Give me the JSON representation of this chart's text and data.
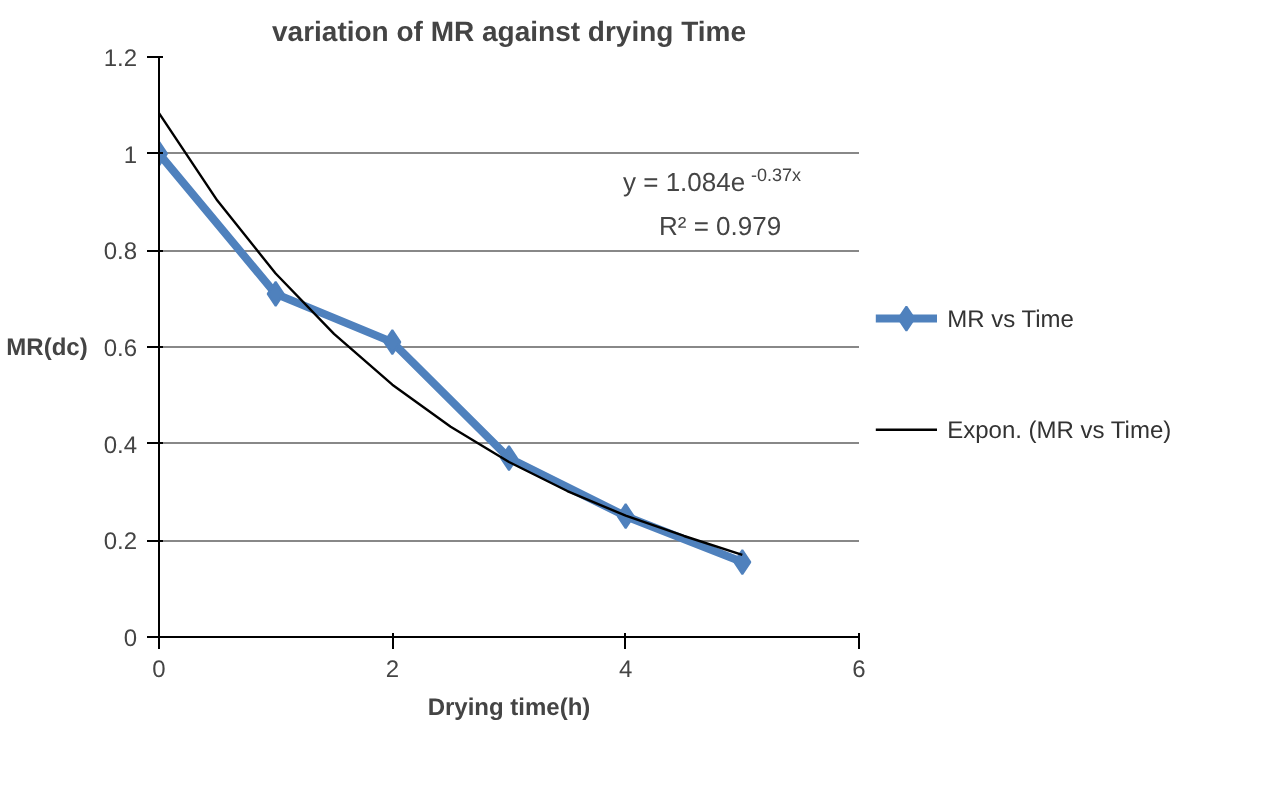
{
  "chart_data": {
    "type": "line",
    "title": "variation of MR against drying Time",
    "xlabel": "Drying time(h)",
    "ylabel": "MR(dc)",
    "x": [
      0,
      1,
      2,
      3,
      4,
      5
    ],
    "series": [
      {
        "name": "MR vs Time",
        "color": "#4f81bd",
        "values": [
          1,
          0.71,
          0.61,
          0.37,
          0.25,
          0.155
        ],
        "marker": "diamond"
      },
      {
        "name": "Expon. (MR vs Time)",
        "color": "#000000",
        "type": "line",
        "marker": "none",
        "x": [
          0,
          0.5,
          1,
          1.5,
          2,
          2.5,
          3,
          3.5,
          4,
          4.5,
          5
        ],
        "values": [
          1.084,
          0.903,
          0.752,
          0.627,
          0.522,
          0.435,
          0.362,
          0.302,
          0.251,
          0.209,
          0.17
        ]
      }
    ],
    "annotations": [
      "y = 1.084e$^{-0.37x}$",
      "R² = 0.979"
    ],
    "xlim": [
      0,
      6
    ],
    "xticks": [
      0,
      2,
      4,
      6
    ],
    "ylim": [
      0,
      1.2
    ],
    "yticks": [
      0,
      0.2,
      0.4,
      0.6,
      0.8,
      1,
      1.2
    ],
    "grid": "y",
    "legend": "right"
  }
}
